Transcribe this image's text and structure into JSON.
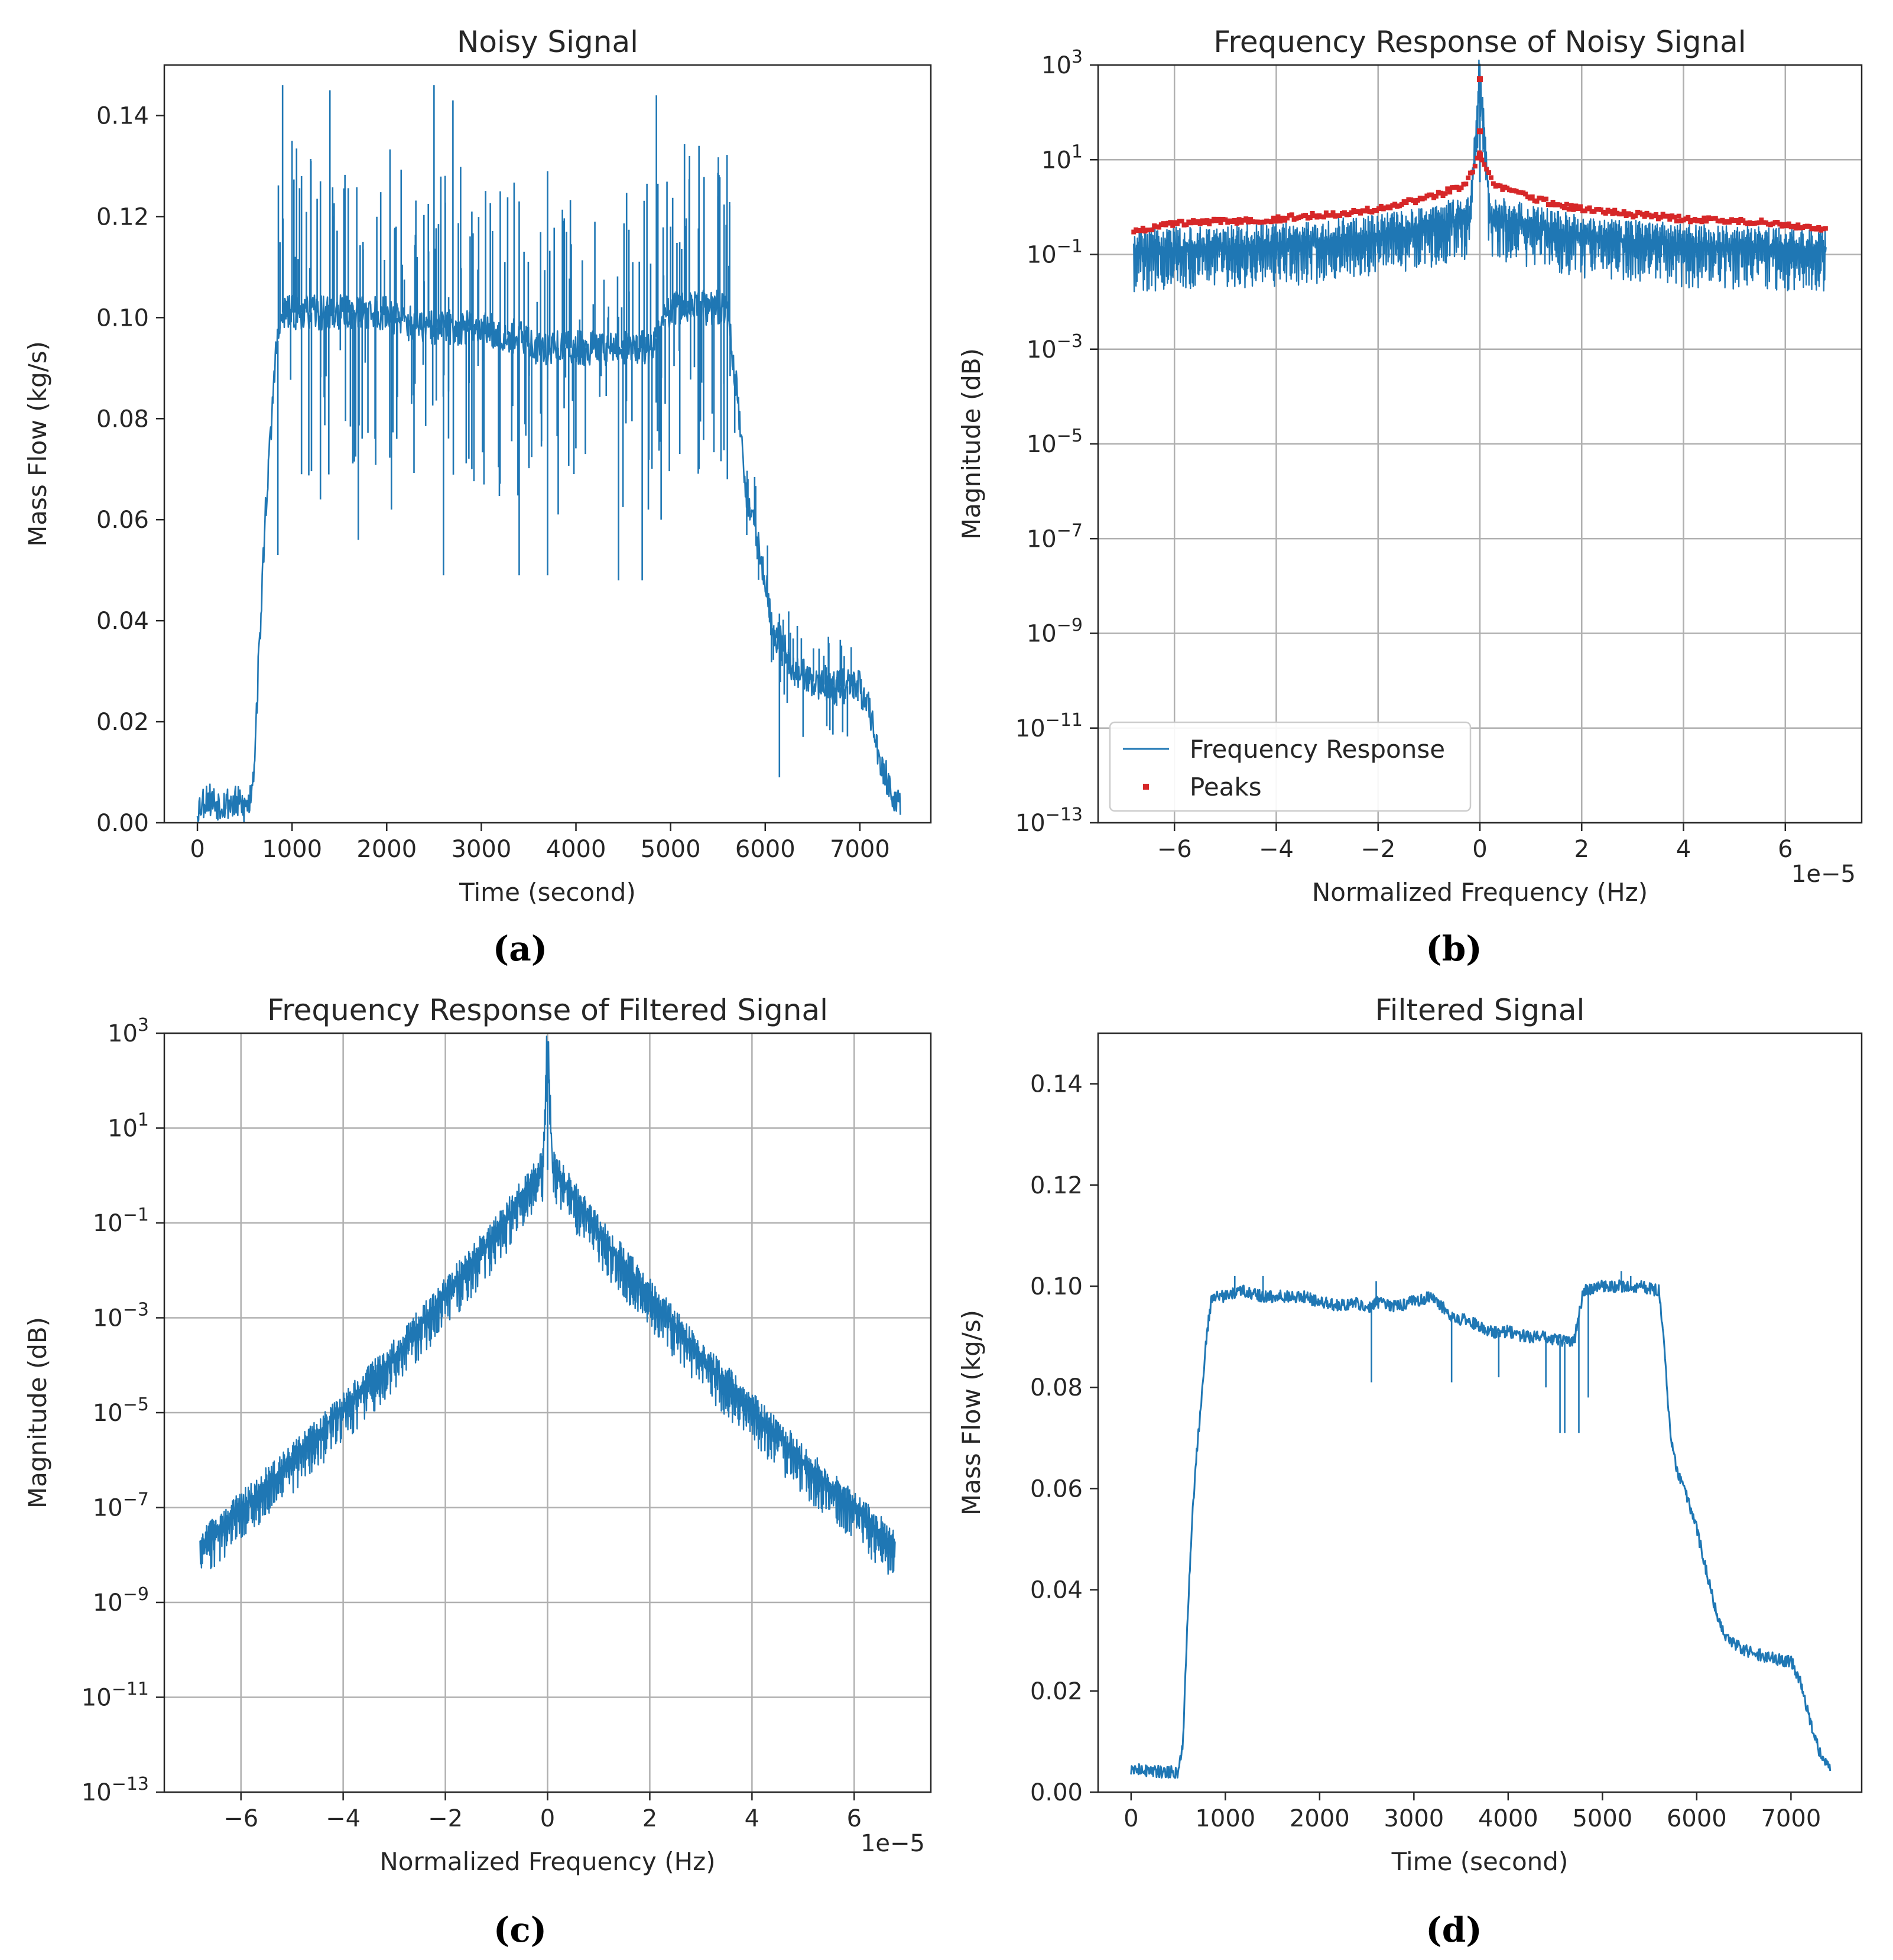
{
  "chart_data": [
    {
      "id": "a",
      "caption": "(a)",
      "type": "line",
      "title": "Noisy Signal",
      "xlabel": "Time (second)",
      "ylabel": "Mass Flow (kg/s)",
      "xlim": [
        -350,
        7750
      ],
      "ylim": [
        0.0,
        0.15
      ],
      "xticks": [
        0,
        1000,
        2000,
        3000,
        4000,
        5000,
        6000,
        7000
      ],
      "yticks": [
        0.0,
        0.02,
        0.04,
        0.06,
        0.08,
        0.1,
        0.12,
        0.14
      ],
      "ytick_labels": [
        "0.00",
        "0.02",
        "0.04",
        "0.06",
        "0.08",
        "0.10",
        "0.12",
        "0.14"
      ],
      "grid": false,
      "series": [
        {
          "name": "Mass Flow",
          "x": [
            0,
            100,
            200,
            400,
            500,
            550,
            600,
            650,
            680,
            720,
            780,
            820,
            900,
            1000,
            1200,
            1500,
            1800,
            2000,
            2200,
            2400,
            2600,
            2800,
            3000,
            3200,
            3400,
            3600,
            3800,
            4000,
            4200,
            4400,
            4600,
            4800,
            5000,
            5200,
            5400,
            5600,
            5700,
            5800,
            5900,
            6000,
            6100,
            6200,
            6300,
            6500,
            6700,
            6900,
            7000,
            7100,
            7200,
            7300,
            7430
          ],
          "y": [
            0.003,
            0.005,
            0.004,
            0.004,
            0.003,
            0.004,
            0.012,
            0.033,
            0.045,
            0.062,
            0.078,
            0.092,
            0.101,
            0.101,
            0.101,
            0.101,
            0.101,
            0.101,
            0.099,
            0.098,
            0.098,
            0.098,
            0.098,
            0.097,
            0.096,
            0.094,
            0.094,
            0.094,
            0.094,
            0.094,
            0.094,
            0.094,
            0.102,
            0.102,
            0.102,
            0.102,
            0.085,
            0.065,
            0.058,
            0.048,
            0.037,
            0.035,
            0.03,
            0.028,
            0.027,
            0.027,
            0.027,
            0.022,
            0.014,
            0.008,
            0.002
          ]
        }
      ],
      "spikes": {
        "up": [
          [
            900,
            0.146
          ],
          [
            1000,
            0.135
          ],
          [
            1100,
            0.128
          ],
          [
            1200,
            0.131
          ],
          [
            1300,
            0.127
          ],
          [
            1400,
            0.145
          ],
          [
            1550,
            0.12
          ],
          [
            1750,
            0.115
          ],
          [
            2100,
            0.118
          ],
          [
            2500,
            0.146
          ],
          [
            2700,
            0.143
          ],
          [
            2900,
            0.121
          ],
          [
            3200,
            0.125
          ],
          [
            3400,
            0.123
          ],
          [
            3700,
            0.129
          ],
          [
            3900,
            0.117
          ],
          [
            4200,
            0.119
          ],
          [
            4600,
            0.111
          ],
          [
            4850,
            0.144
          ],
          [
            5000,
            0.118
          ],
          [
            5200,
            0.132
          ],
          [
            5300,
            0.134
          ],
          [
            5500,
            0.124
          ]
        ],
        "down": [
          [
            850,
            0.053
          ],
          [
            1100,
            0.069
          ],
          [
            1300,
            0.064
          ],
          [
            1700,
            0.056
          ],
          [
            2050,
            0.062
          ],
          [
            2600,
            0.049
          ],
          [
            2900,
            0.07
          ],
          [
            3400,
            0.049
          ],
          [
            3700,
            0.049
          ],
          [
            4100,
            0.073
          ],
          [
            4450,
            0.048
          ],
          [
            4700,
            0.048
          ],
          [
            4900,
            0.06
          ],
          [
            5300,
            0.07
          ],
          [
            5600,
            0.068
          ],
          [
            6150,
            0.009
          ],
          [
            6400,
            0.017
          ]
        ]
      }
    },
    {
      "id": "b",
      "caption": "(b)",
      "type": "line",
      "title": "Frequency Response of Noisy Signal",
      "xlabel": "Normalized Frequency (Hz)",
      "ylabel": "Magnitude (dB)",
      "x_offset_label": "1e−5",
      "yscale": "log",
      "xlim": [
        -7.5,
        7.5
      ],
      "ylim_exp": [
        -13,
        3
      ],
      "xticks": [
        -6,
        -4,
        -2,
        0,
        2,
        4,
        6
      ],
      "xtick_labels": [
        "−6",
        "−4",
        "−2",
        "0",
        "2",
        "4",
        "6"
      ],
      "ytick_exps": [
        3,
        1,
        -1,
        -3,
        -5,
        -7,
        -9,
        -11,
        -13
      ],
      "ytick_exp_labels": [
        "3",
        "1",
        "−1",
        "−3",
        "−5",
        "−7",
        "−9",
        "−11",
        "−13"
      ],
      "grid": true,
      "legend": {
        "placement": "lower-left",
        "entries": [
          "Frequency Response",
          "Peaks"
        ]
      },
      "series": [
        {
          "name": "Frequency Response",
          "x": [
            -6.8,
            -4,
            -2,
            -1,
            -0.2,
            0,
            0.2,
            1,
            2,
            4,
            6.8
          ],
          "log10_y": [
            -0.9,
            -0.8,
            -0.6,
            -0.4,
            -0.2,
            2.7,
            -0.2,
            -0.4,
            -0.6,
            -0.8,
            -0.9
          ]
        },
        {
          "name": "Peaks",
          "x": [
            -6.8,
            -6,
            -5,
            -4,
            -3,
            -2,
            -1,
            -0.3,
            0,
            0,
            0,
            0.3,
            1,
            2,
            3,
            4,
            5,
            6,
            6.8
          ],
          "log10_y": [
            -0.5,
            -0.35,
            -0.3,
            -0.25,
            -0.15,
            -0.05,
            0.2,
            0.45,
            1.1,
            1.6,
            2.7,
            0.45,
            0.2,
            -0.05,
            -0.15,
            -0.25,
            -0.3,
            -0.35,
            -0.5
          ]
        }
      ]
    },
    {
      "id": "c",
      "caption": "(c)",
      "type": "line",
      "title": "Frequency Response of Filtered Signal",
      "xlabel": "Normalized Frequency (Hz)",
      "ylabel": "Magnitude (dB)",
      "x_offset_label": "1e−5",
      "yscale": "log",
      "xlim": [
        -7.5,
        7.5
      ],
      "ylim_exp": [
        -13,
        3
      ],
      "xticks": [
        -6,
        -4,
        -2,
        0,
        2,
        4,
        6
      ],
      "xtick_labels": [
        "−6",
        "−4",
        "−2",
        "0",
        "2",
        "4",
        "6"
      ],
      "ytick_exps": [
        3,
        1,
        -1,
        -3,
        -5,
        -7,
        -9,
        -11,
        -13
      ],
      "ytick_exp_labels": [
        "3",
        "1",
        "−1",
        "−3",
        "−5",
        "−7",
        "−9",
        "−11",
        "−13"
      ],
      "grid": true,
      "series": [
        {
          "name": "Frequency Response",
          "x": [
            -6.8,
            -5,
            -3,
            -1,
            -0.1,
            0,
            0.1,
            1,
            3,
            5,
            6.8
          ],
          "log10_y": [
            -7.8,
            -6.0,
            -3.8,
            -1.2,
            0.2,
            2.7,
            0.2,
            -1.2,
            -3.8,
            -6.0,
            -7.8
          ]
        }
      ]
    },
    {
      "id": "d",
      "caption": "(d)",
      "type": "line",
      "title": "Filtered Signal",
      "xlabel": "Time (second)",
      "ylabel": "Mass Flow (kg/s)",
      "xlim": [
        -350,
        7750
      ],
      "ylim": [
        0.0,
        0.15
      ],
      "xticks": [
        0,
        1000,
        2000,
        3000,
        4000,
        5000,
        6000,
        7000
      ],
      "yticks": [
        0.0,
        0.02,
        0.04,
        0.06,
        0.08,
        0.1,
        0.12,
        0.14
      ],
      "ytick_labels": [
        "0.00",
        "0.02",
        "0.04",
        "0.06",
        "0.08",
        "0.10",
        "0.12",
        "0.14"
      ],
      "grid": false,
      "series": [
        {
          "name": "Mass Flow",
          "x": [
            0,
            100,
            300,
            500,
            550,
            600,
            650,
            700,
            750,
            800,
            850,
            900,
            1000,
            1200,
            1400,
            1600,
            1800,
            2000,
            2200,
            2400,
            2500,
            2600,
            2800,
            3000,
            3200,
            3400,
            3600,
            3800,
            4000,
            4200,
            4400,
            4600,
            4700,
            4800,
            5000,
            5200,
            5400,
            5600,
            5650,
            5700,
            5750,
            5800,
            5900,
            6000,
            6100,
            6200,
            6300,
            6500,
            6700,
            6900,
            7000,
            7100,
            7200,
            7300,
            7420
          ],
          "y": [
            0.004,
            0.0045,
            0.004,
            0.004,
            0.01,
            0.035,
            0.055,
            0.068,
            0.078,
            0.09,
            0.097,
            0.098,
            0.098,
            0.099,
            0.098,
            0.098,
            0.098,
            0.097,
            0.096,
            0.097,
            0.095,
            0.097,
            0.096,
            0.097,
            0.098,
            0.094,
            0.093,
            0.091,
            0.091,
            0.09,
            0.09,
            0.089,
            0.089,
            0.099,
            0.1,
            0.1,
            0.1,
            0.099,
            0.09,
            0.075,
            0.067,
            0.063,
            0.058,
            0.052,
            0.044,
            0.036,
            0.031,
            0.028,
            0.027,
            0.026,
            0.026,
            0.022,
            0.014,
            0.008,
            0.005
          ]
        }
      ],
      "spikes": {
        "up": [
          [
            1100,
            0.102
          ],
          [
            1400,
            0.102
          ],
          [
            2600,
            0.101
          ],
          [
            5200,
            0.103
          ],
          [
            5300,
            0.102
          ]
        ],
        "down": [
          [
            2550,
            0.081
          ],
          [
            3400,
            0.081
          ],
          [
            3900,
            0.082
          ],
          [
            4400,
            0.08
          ],
          [
            4550,
            0.071
          ],
          [
            4600,
            0.071
          ],
          [
            4750,
            0.071
          ],
          [
            4850,
            0.078
          ]
        ]
      }
    }
  ]
}
